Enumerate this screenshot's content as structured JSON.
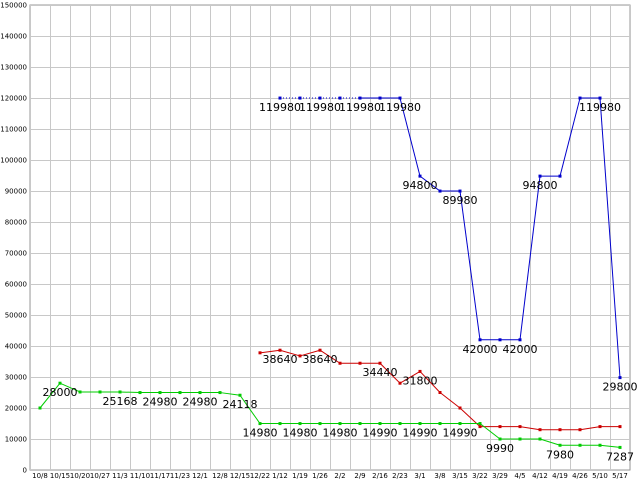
{
  "chart_data": {
    "type": "line",
    "title": "",
    "xlabel": "",
    "ylabel": "",
    "grid": true,
    "ylim": [
      0,
      150000
    ],
    "yticks": [
      0,
      10000,
      20000,
      30000,
      40000,
      50000,
      60000,
      70000,
      80000,
      90000,
      100000,
      110000,
      120000,
      130000,
      140000,
      150000
    ],
    "categories": [
      "10/8",
      "10/15",
      "10/20",
      "10/27",
      "11/3",
      "11/10",
      "11/17",
      "11/23",
      "12/1",
      "12/8",
      "12/15",
      "12/22",
      "1/12",
      "1/19",
      "1/26",
      "2/2",
      "2/9",
      "2/16",
      "2/23",
      "3/1",
      "3/8",
      "3/15",
      "3/22",
      "3/29",
      "4/5",
      "4/12",
      "4/19",
      "4/26",
      "5/10",
      "5/17"
    ],
    "series": [
      {
        "color": "#0000cc",
        "values": [
          null,
          null,
          null,
          null,
          null,
          null,
          null,
          null,
          null,
          null,
          null,
          null,
          119980,
          119980,
          119980,
          119980,
          119980,
          119980,
          119980,
          94800,
          89980,
          89980,
          42000,
          42000,
          42000,
          94800,
          94800,
          119980,
          119980,
          29800
        ],
        "dotted_from_index": 12,
        "dotted_to_index": 16,
        "labels": [
          {
            "index": 12,
            "text": "119980"
          },
          {
            "index": 14,
            "text": "119980"
          },
          {
            "index": 16,
            "text": "119980"
          },
          {
            "index": 18,
            "text": "119980"
          },
          {
            "index": 19,
            "text": "94800"
          },
          {
            "index": 21,
            "text": "89980"
          },
          {
            "index": 22,
            "text": "42000"
          },
          {
            "index": 24,
            "text": "42000"
          },
          {
            "index": 25,
            "text": "94800"
          },
          {
            "index": 28,
            "text": "119980"
          },
          {
            "index": 29,
            "text": "29800"
          }
        ]
      },
      {
        "color": "#cc0000",
        "values": [
          null,
          null,
          null,
          null,
          null,
          null,
          null,
          null,
          null,
          null,
          null,
          37800,
          38640,
          36800,
          38640,
          34440,
          34440,
          34440,
          28000,
          31800,
          25000,
          20000,
          14000,
          14000,
          14000,
          13000,
          13000,
          13000,
          14000,
          14000
        ],
        "labels": [
          {
            "index": 12,
            "text": "38640"
          },
          {
            "index": 14,
            "text": "38640"
          },
          {
            "index": 17,
            "text": "34440"
          },
          {
            "index": 19,
            "text": "31800"
          }
        ]
      },
      {
        "color": "#00cc00",
        "values": [
          20000,
          28000,
          25168,
          25168,
          25168,
          24980,
          24980,
          24980,
          24980,
          24980,
          24118,
          14980,
          14980,
          14980,
          14980,
          14980,
          14990,
          14990,
          14990,
          14990,
          14990,
          14990,
          14990,
          9990,
          9990,
          9990,
          7980,
          7980,
          7980,
          7287
        ],
        "labels": [
          {
            "index": 1,
            "text": "28000"
          },
          {
            "index": 4,
            "text": "25168"
          },
          {
            "index": 6,
            "text": "24980"
          },
          {
            "index": 8,
            "text": "24980"
          },
          {
            "index": 10,
            "text": "24118"
          },
          {
            "index": 11,
            "text": "14980"
          },
          {
            "index": 13,
            "text": "14980"
          },
          {
            "index": 15,
            "text": "14980"
          },
          {
            "index": 17,
            "text": "14990"
          },
          {
            "index": 19,
            "text": "14990"
          },
          {
            "index": 21,
            "text": "14990"
          },
          {
            "index": 23,
            "text": "9990"
          },
          {
            "index": 26,
            "text": "7980"
          },
          {
            "index": 29,
            "text": "7287"
          }
        ]
      }
    ]
  }
}
